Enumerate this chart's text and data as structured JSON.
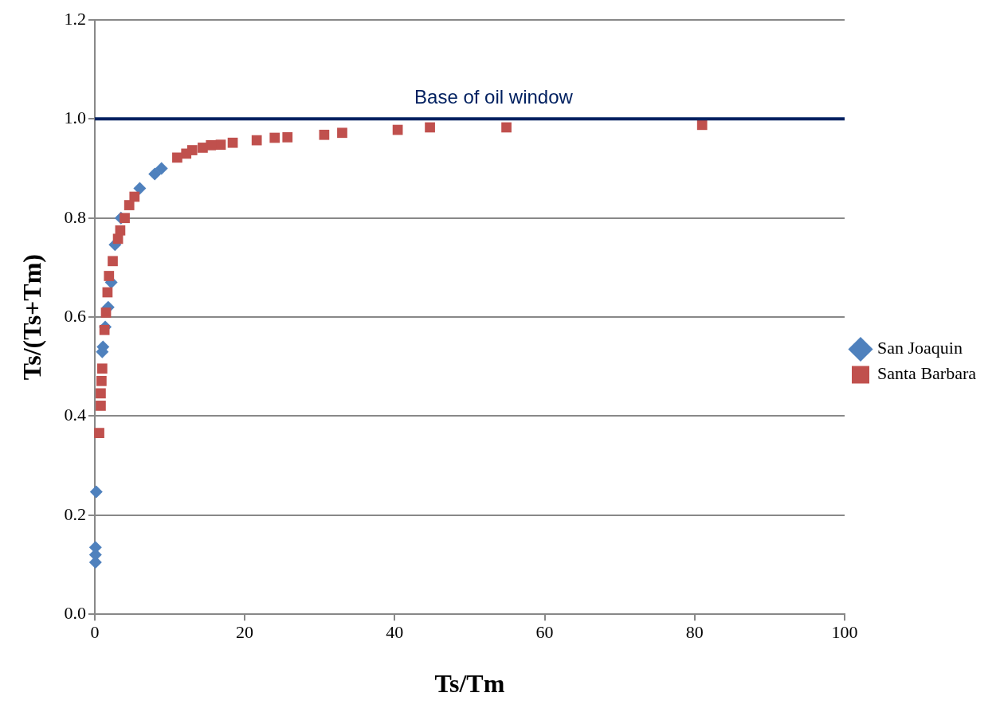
{
  "chart_data": {
    "type": "scatter",
    "xlabel": "Ts/Tm",
    "ylabel": "Ts/(Ts+Tm)",
    "xlim": [
      0,
      100
    ],
    "xticks": [
      0,
      20,
      40,
      60,
      80,
      100
    ],
    "ylim": [
      0,
      1.2
    ],
    "yticks": [
      {
        "value": 0,
        "label": "0.0"
      },
      {
        "value": 0.2,
        "label": "0.2"
      },
      {
        "value": 0.4,
        "label": "0.4"
      },
      {
        "value": 0.6,
        "label": "0.6"
      },
      {
        "value": 0.8,
        "label": "0.8"
      },
      {
        "value": 1.0,
        "label": "1.0"
      },
      {
        "value": 1.2,
        "label": "1.2"
      }
    ],
    "grid": "y",
    "legend": "right",
    "series": [
      {
        "name": "San Joaquin",
        "color": "#4f81bd",
        "marker": "diamond",
        "x": [
          0.1,
          0.1,
          0.1,
          0.2,
          1.0,
          1.1,
          1.4,
          1.8,
          2.2,
          2.7,
          3.5,
          6.0,
          8.0,
          8.9
        ],
        "values": [
          0.105,
          0.12,
          0.135,
          0.247,
          0.53,
          0.54,
          0.58,
          0.62,
          0.67,
          0.746,
          0.8,
          0.86,
          0.889,
          0.9
        ]
      },
      {
        "name": "Santa Barbara",
        "color": "#c0504d",
        "marker": "square",
        "x": [
          81,
          54.9,
          44.7,
          40.4,
          33,
          30.6,
          25.7,
          24,
          21.6,
          18.4,
          16.8,
          15.5,
          14.4,
          13,
          12.2,
          11,
          5.3,
          4.6,
          4.0,
          3.4,
          3.1,
          2.4,
          1.9,
          1.7,
          1.5,
          1.3,
          1.0,
          0.9,
          0.8,
          0.8,
          0.6
        ],
        "values": [
          0.988,
          0.983,
          0.983,
          0.978,
          0.972,
          0.968,
          0.963,
          0.962,
          0.957,
          0.952,
          0.948,
          0.947,
          0.942,
          0.937,
          0.93,
          0.922,
          0.843,
          0.826,
          0.8,
          0.775,
          0.758,
          0.713,
          0.683,
          0.65,
          0.609,
          0.574,
          0.496,
          0.471,
          0.446,
          0.421,
          0.366
        ]
      }
    ],
    "ref_lines": [
      {
        "axis": "y",
        "value": 1.0,
        "label": "Base of oil window",
        "color": "#002060"
      }
    ]
  }
}
